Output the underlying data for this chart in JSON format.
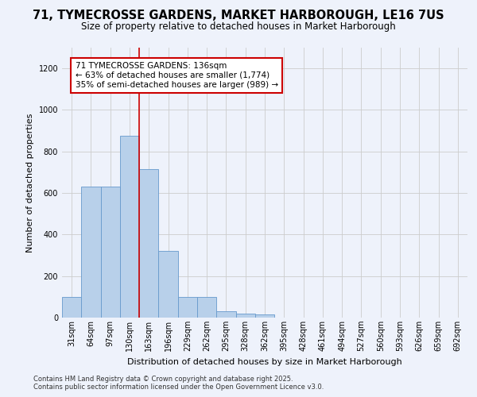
{
  "title": "71, TYMECROSSE GARDENS, MARKET HARBOROUGH, LE16 7US",
  "subtitle": "Size of property relative to detached houses in Market Harborough",
  "xlabel": "Distribution of detached houses by size in Market Harborough",
  "ylabel": "Number of detached properties",
  "categories": [
    "31sqm",
    "64sqm",
    "97sqm",
    "130sqm",
    "163sqm",
    "196sqm",
    "229sqm",
    "262sqm",
    "295sqm",
    "328sqm",
    "362sqm",
    "395sqm",
    "428sqm",
    "461sqm",
    "494sqm",
    "527sqm",
    "560sqm",
    "593sqm",
    "626sqm",
    "659sqm",
    "692sqm"
  ],
  "values": [
    100,
    630,
    630,
    875,
    715,
    320,
    100,
    100,
    30,
    20,
    15,
    0,
    0,
    0,
    0,
    0,
    0,
    0,
    0,
    0,
    0
  ],
  "bar_color": "#b8d0ea",
  "bar_edge_color": "#6699cc",
  "red_line_x": 3.5,
  "annotation_title": "71 TYMECROSSE GARDENS: 136sqm",
  "annotation_line1": "← 63% of detached houses are smaller (1,774)",
  "annotation_line2": "35% of semi-detached houses are larger (989) →",
  "annotation_box_facecolor": "#ffffff",
  "annotation_box_edgecolor": "#cc0000",
  "red_line_color": "#cc0000",
  "grid_color": "#cccccc",
  "background_color": "#eef2fb",
  "ylim": [
    0,
    1300
  ],
  "yticks": [
    0,
    200,
    400,
    600,
    800,
    1000,
    1200
  ],
  "footer_line1": "Contains HM Land Registry data © Crown copyright and database right 2025.",
  "footer_line2": "Contains public sector information licensed under the Open Government Licence v3.0.",
  "title_fontsize": 10.5,
  "subtitle_fontsize": 8.5,
  "axis_label_fontsize": 8,
  "tick_fontsize": 7,
  "annotation_fontsize": 7.5,
  "footer_fontsize": 6
}
